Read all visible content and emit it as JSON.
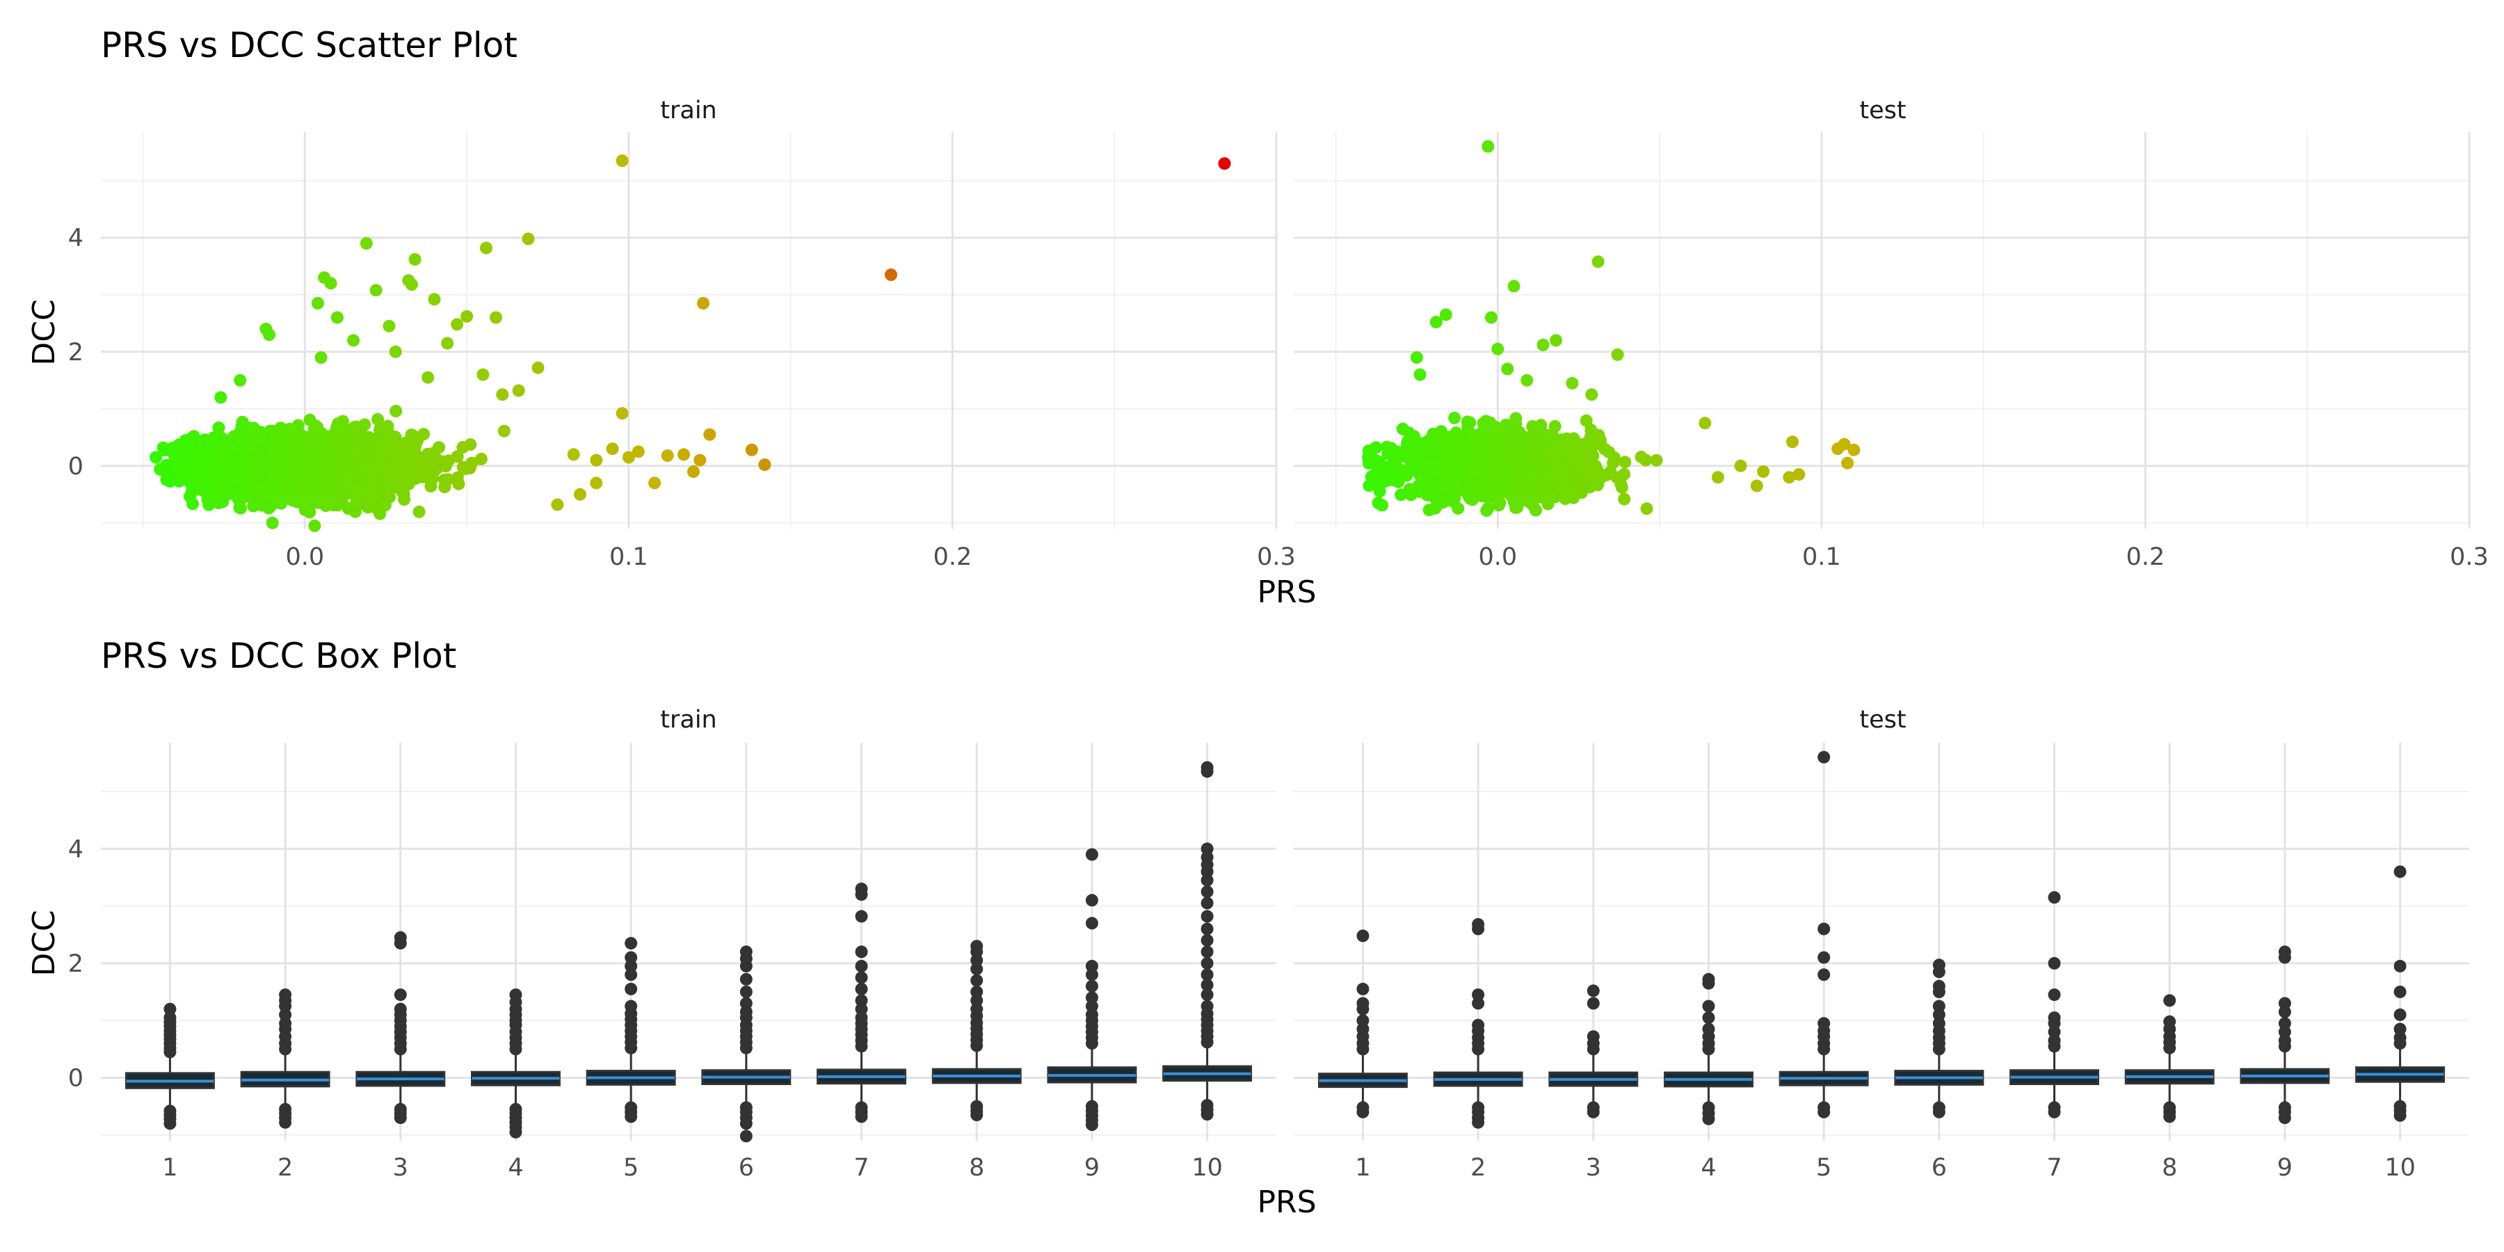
{
  "chart_data": [
    {
      "type": "scatter",
      "title": "PRS vs DCC Scatter Plot",
      "xlabel": "PRS",
      "ylabel": "DCC",
      "facets": [
        "train",
        "test"
      ],
      "xlim": [
        -0.063,
        0.3
      ],
      "ylim": [
        -1.1,
        5.85
      ],
      "x_ticks": [
        "0.0",
        "0.1",
        "0.2",
        "0.3"
      ],
      "y_ticks": [
        "0",
        "2",
        "4"
      ],
      "grid": true,
      "legend": "none",
      "color_scale": {
        "low": "#22ff00",
        "mid": "#c8b400",
        "high": "#e60000",
        "mapped_to": "PRS"
      },
      "series": [
        {
          "facet": "train",
          "dense_cloud": {
            "x_range": [
              -0.045,
              0.07
            ],
            "y_range": [
              -1.0,
              1.4
            ],
            "center": [
              0.0,
              0.0
            ]
          },
          "points": [
            {
              "x": 0.098,
              "y": 5.35
            },
            {
              "x": 0.284,
              "y": 5.3
            },
            {
              "x": 0.181,
              "y": 3.35
            },
            {
              "x": 0.123,
              "y": 2.85
            },
            {
              "x": 0.019,
              "y": 3.9
            },
            {
              "x": 0.069,
              "y": 3.98
            },
            {
              "x": 0.034,
              "y": 3.62
            },
            {
              "x": 0.056,
              "y": 3.82
            },
            {
              "x": 0.006,
              "y": 3.3
            },
            {
              "x": 0.008,
              "y": 3.2
            },
            {
              "x": 0.032,
              "y": 3.25
            },
            {
              "x": 0.022,
              "y": 3.08
            },
            {
              "x": 0.033,
              "y": 3.18
            },
            {
              "x": 0.004,
              "y": 2.85
            },
            {
              "x": 0.05,
              "y": 2.62
            },
            {
              "x": 0.059,
              "y": 2.6
            },
            {
              "x": 0.04,
              "y": 2.92
            },
            {
              "x": 0.01,
              "y": 2.6
            },
            {
              "x": 0.026,
              "y": 2.45
            },
            {
              "x": -0.012,
              "y": 2.4
            },
            {
              "x": -0.011,
              "y": 2.3
            },
            {
              "x": 0.047,
              "y": 2.48
            },
            {
              "x": 0.072,
              "y": 1.72
            },
            {
              "x": 0.066,
              "y": 1.32
            },
            {
              "x": 0.061,
              "y": 1.25
            },
            {
              "x": 0.098,
              "y": 0.92
            },
            {
              "x": 0.125,
              "y": 0.55
            },
            {
              "x": 0.117,
              "y": 0.2
            },
            {
              "x": 0.122,
              "y": 0.1
            },
            {
              "x": 0.112,
              "y": 0.18
            },
            {
              "x": 0.138,
              "y": 0.28
            },
            {
              "x": 0.142,
              "y": 0.02
            },
            {
              "x": 0.12,
              "y": -0.1
            },
            {
              "x": 0.108,
              "y": -0.3
            },
            {
              "x": 0.09,
              "y": -0.3
            },
            {
              "x": 0.085,
              "y": -0.5
            },
            {
              "x": 0.078,
              "y": -0.68
            },
            {
              "x": 0.095,
              "y": 0.3
            },
            {
              "x": 0.1,
              "y": 0.15
            },
            {
              "x": 0.103,
              "y": 0.25
            },
            {
              "x": 0.09,
              "y": 0.1
            },
            {
              "x": 0.083,
              "y": 0.2
            },
            {
              "x": -0.046,
              "y": 0.15
            },
            {
              "x": -0.01,
              "y": -1.0
            },
            {
              "x": 0.003,
              "y": -1.05
            },
            {
              "x": 0.005,
              "y": 1.9
            },
            {
              "x": 0.015,
              "y": 2.2
            },
            {
              "x": 0.028,
              "y": 2.0
            },
            {
              "x": 0.044,
              "y": 2.15
            },
            {
              "x": 0.055,
              "y": 1.6
            },
            {
              "x": 0.038,
              "y": 1.55
            },
            {
              "x": -0.02,
              "y": 1.5
            },
            {
              "x": -0.026,
              "y": 1.2
            }
          ]
        },
        {
          "facet": "test",
          "dense_cloud": {
            "x_range": [
              -0.04,
              0.065
            ],
            "y_range": [
              -0.8,
              1.1
            ],
            "center": [
              0.0,
              0.0
            ]
          },
          "points": [
            {
              "x": -0.003,
              "y": 5.6
            },
            {
              "x": 0.031,
              "y": 3.58
            },
            {
              "x": 0.005,
              "y": 3.15
            },
            {
              "x": -0.016,
              "y": 2.65
            },
            {
              "x": -0.019,
              "y": 2.52
            },
            {
              "x": -0.002,
              "y": 2.6
            },
            {
              "x": 0.018,
              "y": 2.2
            },
            {
              "x": 0.037,
              "y": 1.95
            },
            {
              "x": 0.014,
              "y": 2.12
            },
            {
              "x": 0.0,
              "y": 2.05
            },
            {
              "x": -0.025,
              "y": 1.9
            },
            {
              "x": 0.029,
              "y": 1.25
            },
            {
              "x": 0.023,
              "y": 1.45
            },
            {
              "x": -0.024,
              "y": 1.6
            },
            {
              "x": 0.003,
              "y": 1.7
            },
            {
              "x": 0.009,
              "y": 1.5
            },
            {
              "x": 0.064,
              "y": 0.75
            },
            {
              "x": 0.107,
              "y": 0.38
            },
            {
              "x": 0.105,
              "y": 0.3
            },
            {
              "x": 0.11,
              "y": 0.28
            },
            {
              "x": 0.091,
              "y": 0.42
            },
            {
              "x": 0.108,
              "y": 0.05
            },
            {
              "x": 0.093,
              "y": -0.15
            },
            {
              "x": 0.09,
              "y": -0.2
            },
            {
              "x": 0.08,
              "y": -0.35
            },
            {
              "x": 0.075,
              "y": 0.0
            },
            {
              "x": 0.082,
              "y": -0.1
            },
            {
              "x": 0.068,
              "y": -0.2
            },
            {
              "x": 0.046,
              "y": -0.75
            },
            {
              "x": -0.04,
              "y": 0.15
            }
          ]
        }
      ]
    },
    {
      "type": "box",
      "title": "PRS vs DCC Box Plot",
      "xlabel": "PRS",
      "ylabel": "DCC",
      "facets": [
        "train",
        "test"
      ],
      "categories": [
        "1",
        "2",
        "3",
        "4",
        "5",
        "6",
        "7",
        "8",
        "9",
        "10"
      ],
      "ylim": [
        -1.1,
        5.85
      ],
      "y_ticks": [
        "0",
        "2",
        "4"
      ],
      "grid": true,
      "box_line_color": "#333333",
      "box_fill": "#1a2a33",
      "median_color": "#3a8fd6",
      "series": [
        {
          "facet": "train",
          "boxes": [
            {
              "q1": -0.18,
              "median": -0.06,
              "q3": 0.08,
              "whisker_low": -0.48,
              "whisker_high": 0.42,
              "outliers": [
                0.45,
                0.52,
                0.6,
                0.68,
                0.75,
                0.82,
                0.9,
                0.97,
                1.05,
                1.2,
                -0.58,
                -0.65,
                -0.72,
                -0.8
              ]
            },
            {
              "q1": -0.15,
              "median": -0.04,
              "q3": 0.1,
              "whisker_low": -0.48,
              "whisker_high": 0.45,
              "outliers": [
                0.5,
                0.6,
                0.72,
                0.85,
                0.95,
                1.1,
                1.25,
                1.35,
                1.45,
                -0.55,
                -0.62,
                -0.7,
                -0.78
              ]
            },
            {
              "q1": -0.14,
              "median": -0.02,
              "q3": 0.1,
              "whisker_low": -0.48,
              "whisker_high": 0.45,
              "outliers": [
                0.5,
                0.6,
                0.7,
                0.8,
                0.9,
                1.0,
                1.1,
                1.2,
                1.45,
                2.35,
                2.45,
                -0.55,
                -0.62,
                -0.7
              ]
            },
            {
              "q1": -0.13,
              "median": -0.01,
              "q3": 0.1,
              "whisker_low": -0.48,
              "whisker_high": 0.45,
              "outliers": [
                0.5,
                0.6,
                0.7,
                0.8,
                0.92,
                1.0,
                1.1,
                1.2,
                1.32,
                1.45,
                -0.55,
                -0.62,
                -0.7,
                -0.78,
                -0.86,
                -0.95
              ]
            },
            {
              "q1": -0.12,
              "median": 0.0,
              "q3": 0.12,
              "whisker_low": -0.46,
              "whisker_high": 0.46,
              "outliers": [
                0.52,
                0.62,
                0.72,
                0.82,
                0.92,
                1.02,
                1.12,
                1.25,
                1.55,
                1.8,
                1.95,
                2.1,
                2.35,
                -0.52,
                -0.6,
                -0.68
              ]
            },
            {
              "q1": -0.11,
              "median": 0.01,
              "q3": 0.13,
              "whisker_low": -0.46,
              "whisker_high": 0.48,
              "outliers": [
                0.52,
                0.62,
                0.72,
                0.82,
                0.92,
                1.05,
                1.15,
                1.3,
                1.5,
                1.72,
                1.95,
                2.08,
                2.2,
                -0.52,
                -0.6,
                -0.7,
                -0.8,
                -1.02
              ]
            },
            {
              "q1": -0.1,
              "median": 0.02,
              "q3": 0.14,
              "whisker_low": -0.45,
              "whisker_high": 0.5,
              "outliers": [
                0.55,
                0.65,
                0.75,
                0.85,
                0.95,
                1.05,
                1.2,
                1.35,
                1.55,
                1.75,
                1.95,
                2.2,
                2.82,
                3.2,
                3.3,
                -0.52,
                -0.6,
                -0.68
              ]
            },
            {
              "q1": -0.09,
              "median": 0.03,
              "q3": 0.15,
              "whisker_low": -0.45,
              "whisker_high": 0.52,
              "outliers": [
                0.56,
                0.66,
                0.76,
                0.86,
                0.96,
                1.08,
                1.2,
                1.35,
                1.5,
                1.7,
                1.9,
                2.05,
                2.2,
                2.3,
                -0.5,
                -0.58,
                -0.65
              ]
            },
            {
              "q1": -0.08,
              "median": 0.04,
              "q3": 0.18,
              "whisker_low": -0.45,
              "whisker_high": 0.55,
              "outliers": [
                0.6,
                0.7,
                0.8,
                0.9,
                1.0,
                1.1,
                1.25,
                1.4,
                1.6,
                1.8,
                1.95,
                2.7,
                3.1,
                3.9,
                -0.5,
                -0.58,
                -0.66,
                -0.74,
                -0.82
              ]
            },
            {
              "q1": -0.05,
              "median": 0.07,
              "q3": 0.2,
              "whisker_low": -0.42,
              "whisker_high": 0.58,
              "outliers": [
                0.62,
                0.72,
                0.82,
                0.92,
                1.02,
                1.12,
                1.25,
                1.45,
                1.62,
                1.8,
                2.0,
                2.2,
                2.4,
                2.6,
                2.82,
                3.05,
                3.25,
                3.45,
                3.6,
                3.72,
                3.85,
                4.0,
                5.35,
                5.42,
                -0.48,
                -0.56,
                -0.64
              ]
            }
          ]
        },
        {
          "facet": "test",
          "boxes": [
            {
              "q1": -0.16,
              "median": -0.05,
              "q3": 0.07,
              "whisker_low": -0.45,
              "whisker_high": 0.4,
              "outliers": [
                0.5,
                0.6,
                0.72,
                0.85,
                1.0,
                1.2,
                1.3,
                1.55,
                2.48,
                -0.52,
                -0.6
              ]
            },
            {
              "q1": -0.14,
              "median": -0.03,
              "q3": 0.09,
              "whisker_low": -0.45,
              "whisker_high": 0.42,
              "outliers": [
                0.5,
                0.6,
                0.7,
                0.82,
                0.92,
                1.3,
                1.45,
                2.6,
                2.68,
                -0.52,
                -0.6,
                -0.7,
                -0.78
              ]
            },
            {
              "q1": -0.14,
              "median": -0.03,
              "q3": 0.09,
              "whisker_low": -0.45,
              "whisker_high": 0.42,
              "outliers": [
                0.5,
                0.6,
                0.72,
                1.3,
                1.52,
                -0.52,
                -0.6
              ]
            },
            {
              "q1": -0.15,
              "median": -0.03,
              "q3": 0.09,
              "whisker_low": -0.45,
              "whisker_high": 0.42,
              "outliers": [
                0.5,
                0.6,
                0.72,
                0.85,
                1.05,
                1.25,
                1.65,
                1.72,
                -0.52,
                -0.62,
                -0.72
              ]
            },
            {
              "q1": -0.13,
              "median": -0.01,
              "q3": 0.1,
              "whisker_low": -0.45,
              "whisker_high": 0.45,
              "outliers": [
                0.5,
                0.6,
                0.72,
                0.82,
                0.95,
                1.8,
                2.1,
                2.6,
                5.6,
                -0.52,
                -0.6
              ]
            },
            {
              "q1": -0.12,
              "median": 0.0,
              "q3": 0.12,
              "whisker_low": -0.45,
              "whisker_high": 0.45,
              "outliers": [
                0.5,
                0.6,
                0.7,
                0.82,
                0.95,
                1.1,
                1.25,
                1.5,
                1.6,
                1.85,
                1.97,
                -0.52,
                -0.6
              ]
            },
            {
              "q1": -0.11,
              "median": 0.01,
              "q3": 0.13,
              "whisker_low": -0.45,
              "whisker_high": 0.48,
              "outliers": [
                0.55,
                0.65,
                0.8,
                0.95,
                1.05,
                1.45,
                2.0,
                3.15,
                -0.52,
                -0.6
              ]
            },
            {
              "q1": -0.1,
              "median": 0.02,
              "q3": 0.13,
              "whisker_low": -0.45,
              "whisker_high": 0.48,
              "outliers": [
                0.52,
                0.62,
                0.72,
                0.85,
                0.98,
                1.35,
                -0.52,
                -0.6,
                -0.68
              ]
            },
            {
              "q1": -0.09,
              "median": 0.03,
              "q3": 0.15,
              "whisker_low": -0.45,
              "whisker_high": 0.5,
              "outliers": [
                0.55,
                0.65,
                0.8,
                0.95,
                1.15,
                1.3,
                2.1,
                2.2,
                -0.52,
                -0.6,
                -0.7
              ]
            },
            {
              "q1": -0.07,
              "median": 0.06,
              "q3": 0.18,
              "whisker_low": -0.42,
              "whisker_high": 0.55,
              "outliers": [
                0.6,
                0.7,
                0.85,
                1.1,
                1.5,
                1.95,
                3.6,
                -0.5,
                -0.58,
                -0.66
              ]
            }
          ]
        }
      ]
    }
  ]
}
